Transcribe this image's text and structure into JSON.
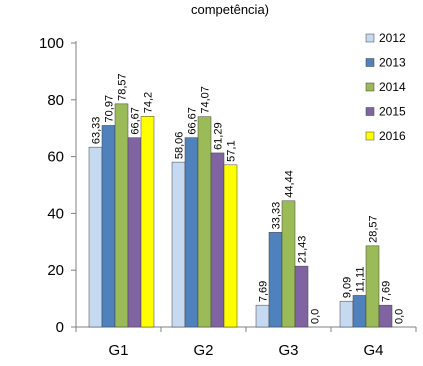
{
  "chart_data": {
    "type": "bar",
    "title": "competência)",
    "categories": [
      "G1",
      "G2",
      "G3",
      "G4"
    ],
    "series": [
      {
        "name": "2012",
        "color": "#c5d9f1",
        "values": [
          63.33,
          58.06,
          7.69,
          9.09
        ],
        "labels": [
          "63,33",
          "58,06",
          "7,69",
          "9,09"
        ]
      },
      {
        "name": "2013",
        "color": "#4f81bd",
        "values": [
          70.97,
          66.67,
          33.33,
          11.11
        ],
        "labels": [
          "70,97",
          "66,67",
          "33,33",
          "11,11"
        ]
      },
      {
        "name": "2014",
        "color": "#9bbb59",
        "values": [
          78.57,
          74.07,
          44.44,
          28.57
        ],
        "labels": [
          "78,57",
          "74,07",
          "44,44",
          "28,57"
        ]
      },
      {
        "name": "2015",
        "color": "#8064a2",
        "values": [
          66.67,
          61.29,
          21.43,
          7.69
        ],
        "labels": [
          "66,67",
          "61,29",
          "21,43",
          "7,69"
        ]
      },
      {
        "name": "2016",
        "color": "#ffff00",
        "values": [
          74.2,
          57.1,
          0.0,
          0.0
        ],
        "labels": [
          "74,2",
          "57,1",
          "0,0",
          "0,0"
        ]
      }
    ],
    "yticks": [
      0,
      20,
      40,
      60,
      80,
      100
    ],
    "ylim": [
      0,
      100
    ],
    "legend_position": "right",
    "grid": false
  }
}
